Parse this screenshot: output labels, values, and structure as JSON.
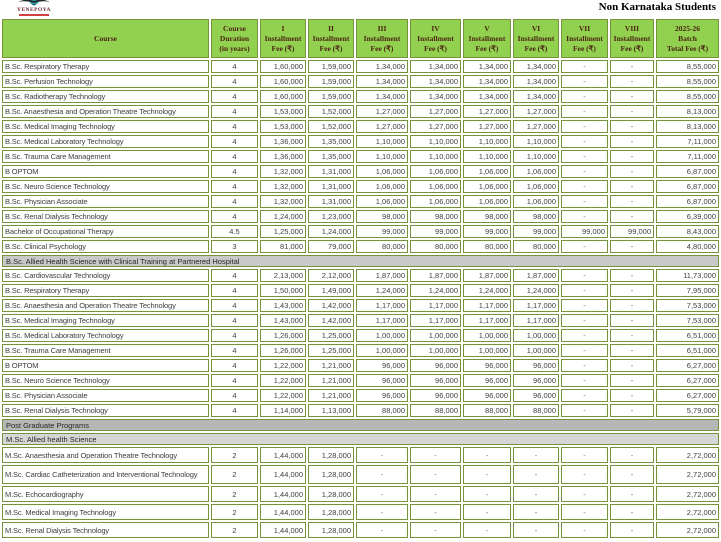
{
  "header": {
    "title": "Non Karnataka Students",
    "logo_text": "YENEPOYA"
  },
  "colors": {
    "header_green": "#92d050",
    "border_olive": "#76933c",
    "header_text": "#4b2413",
    "body_text": "#3f3f3f",
    "section_gray": "#c9c9c9",
    "pg_gray": "#b7b7b7",
    "subsection_gray": "#d6d6d6",
    "logo_maroon": "#6d2430",
    "logo_red": "#c00000",
    "logo_teal": "#29b7c3"
  },
  "table": {
    "columns": [
      {
        "lines": [
          "Course"
        ]
      },
      {
        "lines": [
          "Course",
          "Duration",
          "(in years)"
        ]
      },
      {
        "lines": [
          "I",
          "Installment",
          "Fee (₹)"
        ]
      },
      {
        "lines": [
          "II",
          "Installment",
          "Fee (₹)"
        ]
      },
      {
        "lines": [
          "III",
          "Installment",
          "Fee (₹)"
        ]
      },
      {
        "lines": [
          "IV",
          "Installment",
          "Fee (₹)"
        ]
      },
      {
        "lines": [
          "V",
          "Installment",
          "Fee (₹)"
        ]
      },
      {
        "lines": [
          "VI",
          "Installment",
          "Fee (₹)"
        ]
      },
      {
        "lines": [
          "VII",
          "Installment",
          "Fee (₹)"
        ]
      },
      {
        "lines": [
          "VIII",
          "Installment",
          "Fee (₹)"
        ]
      },
      {
        "lines": [
          "2025-26",
          "Batch",
          "Total Fee (₹)"
        ]
      }
    ],
    "sections": [
      {
        "header": null,
        "rows": [
          [
            "B.Sc. Respiratory Therapy",
            "4",
            "1,60,000",
            "1,59,000",
            "1,34,000",
            "1,34,000",
            "1,34,000",
            "1,34,000",
            "-",
            "-",
            "8,55,000"
          ],
          [
            "B.Sc. Perfusion Technology",
            "4",
            "1,60,000",
            "1,59,000",
            "1,34,000",
            "1,34,000",
            "1,34,000",
            "1,34,000",
            "-",
            "-",
            "8,55,000"
          ],
          [
            "B.Sc. Radiotherapy Technology",
            "4",
            "1,60,000",
            "1,59,000",
            "1,34,000",
            "1,34,000",
            "1,34,000",
            "1,34,000",
            "-",
            "-",
            "8,55,000"
          ],
          [
            "B.Sc. Anaesthesia and Operation Theatre Technology",
            "4",
            "1,53,000",
            "1,52,000",
            "1,27,000",
            "1,27,000",
            "1,27,000",
            "1,27,000",
            "-",
            "-",
            "8,13,000"
          ],
          [
            "B.Sc. Medical Imaging Technology",
            "4",
            "1,53,000",
            "1,52,000",
            "1,27,000",
            "1,27,000",
            "1,27,000",
            "1,27,000",
            "-",
            "-",
            "8,13,000"
          ],
          [
            "B.Sc. Medical Laboratory Technology",
            "4",
            "1,36,000",
            "1,35,000",
            "1,10,000",
            "1,10,000",
            "1,10,000",
            "1,10,000",
            "-",
            "-",
            "7,11,000"
          ],
          [
            "B.Sc. Trauma Care Management",
            "4",
            "1,36,000",
            "1,35,000",
            "1,10,000",
            "1,10,000",
            "1,10,000",
            "1,10,000",
            "-",
            "-",
            "7,11,000"
          ],
          [
            "B OPTOM",
            "4",
            "1,32,000",
            "1,31,000",
            "1,06,000",
            "1,06,000",
            "1,06,000",
            "1,06,000",
            "-",
            "-",
            "6,87,000"
          ],
          [
            "B.Sc. Neuro Science Technology",
            "4",
            "1,32,000",
            "1,31,000",
            "1,06,000",
            "1,06,000",
            "1,06,000",
            "1,06,000",
            "-",
            "-",
            "6,87,000"
          ],
          [
            "B.Sc. Physician Associate",
            "4",
            "1,32,000",
            "1,31,000",
            "1,06,000",
            "1,06,000",
            "1,06,000",
            "1,06,000",
            "-",
            "-",
            "6,87,000"
          ],
          [
            "B.Sc. Renal Dialysis Technology",
            "4",
            "1,24,000",
            "1,23,000",
            "98,000",
            "98,000",
            "98,000",
            "98,000",
            "-",
            "-",
            "6,39,000"
          ],
          [
            "Bachelor of Occupational Therapy",
            "4.5",
            "1,25,000",
            "1,24,000",
            "99,000",
            "99,000",
            "99,000",
            "99,000",
            "99,000",
            "99,000",
            "8,43,000"
          ],
          [
            "B.Sc. Clinical Psychology",
            "3",
            "81,000",
            "79,000",
            "80,000",
            "80,000",
            "80,000",
            "80,000",
            "-",
            "-",
            "4,80,000"
          ]
        ]
      },
      {
        "header": "B.Sc. Allied Health Science with Clinical Training at Partnered Hospital",
        "rows": [
          [
            "B.Sc. Cardiovascular Technology",
            "4",
            "2,13,000",
            "2,12,000",
            "1,87,000",
            "1,87,000",
            "1,87,000",
            "1,87,000",
            "-",
            "-",
            "11,73,000"
          ],
          [
            "B.Sc. Respiratory Therapy",
            "4",
            "1,50,000",
            "1,49,000",
            "1,24,000",
            "1,24,000",
            "1,24,000",
            "1,24,000",
            "-",
            "-",
            "7,95,000"
          ],
          [
            "B.Sc. Anaesthesia and Operation Theatre Technology",
            "4",
            "1,43,000",
            "1,42,000",
            "1,17,000",
            "1,17,000",
            "1,17,000",
            "1,17,000",
            "-",
            "-",
            "7,53,000"
          ],
          [
            "B.Sc. Medical Imaging Technology",
            "4",
            "1,43,000",
            "1,42,000",
            "1,17,000",
            "1,17,000",
            "1,17,000",
            "1,17,000",
            "-",
            "-",
            "7,53,000"
          ],
          [
            "B.Sc. Medical Laboratory Technology",
            "4",
            "1,26,000",
            "1,25,000",
            "1,00,000",
            "1,00,000",
            "1,00,000",
            "1,00,000",
            "-",
            "-",
            "6,51,000"
          ],
          [
            "B.Sc. Trauma Care Management",
            "4",
            "1,26,000",
            "1,25,000",
            "1,00,000",
            "1,00,000",
            "1,00,000",
            "1,00,000",
            "-",
            "-",
            "6,51,000"
          ],
          [
            "B OPTOM",
            "4",
            "1,22,000",
            "1,21,000",
            "96,000",
            "96,000",
            "96,000",
            "96,000",
            "-",
            "-",
            "6,27,000"
          ],
          [
            "B.Sc. Neuro Science Technology",
            "4",
            "1,22,000",
            "1,21,000",
            "96,000",
            "96,000",
            "96,000",
            "96,000",
            "-",
            "-",
            "6,27,000"
          ],
          [
            "B.Sc. Physician Associate",
            "4",
            "1,22,000",
            "1,21,000",
            "96,000",
            "96,000",
            "96,000",
            "96,000",
            "-",
            "-",
            "6,27,000"
          ],
          [
            "B.Sc. Renal Dialysis Technology",
            "4",
            "1,14,000",
            "1,13,000",
            "88,000",
            "88,000",
            "88,000",
            "88,000",
            "-",
            "-",
            "5,79,000"
          ]
        ]
      },
      {
        "header": "Post Graduate Programs",
        "subheader": "M.Sc. Allied health Science",
        "rows": [
          [
            "M.Sc. Anaesthesia and Operation Theatre Technology",
            "2",
            "1,44,000",
            "1,28,000",
            "-",
            "-",
            "-",
            "-",
            "-",
            "-",
            "2,72,000"
          ],
          [
            "M.Sc. Cardiac Catheterization and Interventional Technology",
            "2",
            "1,44,000",
            "1,28,000",
            "-",
            "-",
            "-",
            "-",
            "-",
            "-",
            "2,72,000"
          ],
          [
            "M.Sc. Echocardiography",
            "2",
            "1,44,000",
            "1,28,000",
            "-",
            "-",
            "-",
            "-",
            "-",
            "-",
            "2,72,000"
          ],
          [
            "M.Sc. Medical Imaging Technology",
            "2",
            "1,44,000",
            "1,28,000",
            "-",
            "-",
            "-",
            "-",
            "-",
            "-",
            "2,72,000"
          ],
          [
            "M.Sc. Renal Dialysis Technology",
            "2",
            "1,44,000",
            "1,28,000",
            "-",
            "-",
            "-",
            "-",
            "-",
            "-",
            "2,72,000"
          ]
        ]
      }
    ]
  }
}
